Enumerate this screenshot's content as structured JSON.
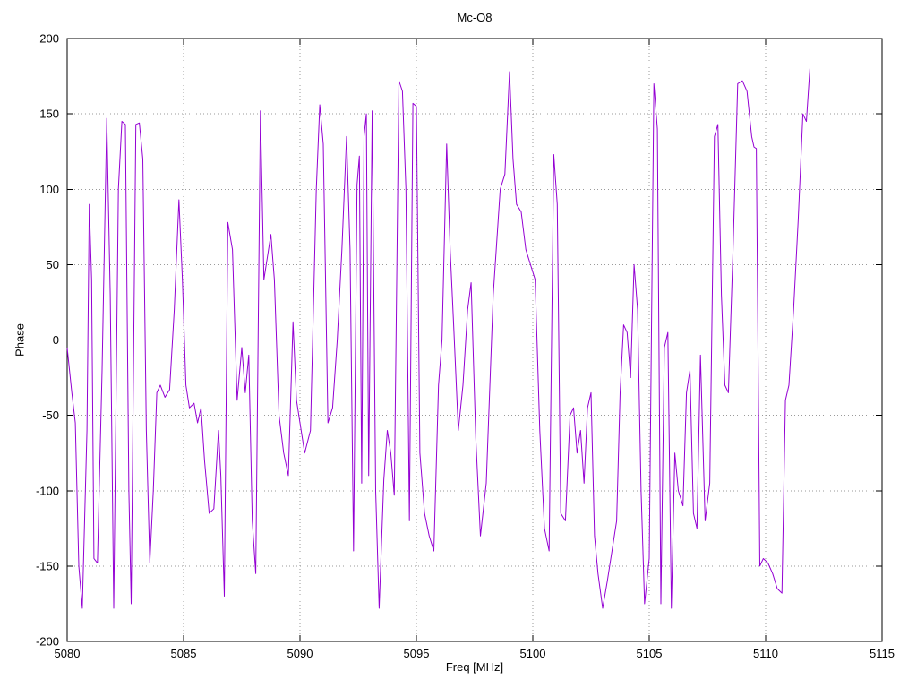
{
  "page": {
    "background": "#ffffff"
  },
  "chart_data": {
    "type": "line",
    "title": "Mc-O8",
    "xlabel": "Freq [MHz]",
    "ylabel": "Phase",
    "xlim": [
      5080,
      5115
    ],
    "ylim": [
      -200,
      200
    ],
    "x_ticks": [
      5080,
      5085,
      5090,
      5095,
      5100,
      5105,
      5110,
      5115
    ],
    "y_ticks": [
      -200,
      -150,
      -100,
      -50,
      0,
      50,
      100,
      150,
      200
    ],
    "grid": true,
    "grid_style": "dotted",
    "grid_color": "#9a9a9a",
    "border_color": "#000000",
    "line_color": "#9400d3",
    "legend": "none",
    "series": [
      {
        "name": "Mc-O8",
        "points": [
          [
            5080.0,
            -5
          ],
          [
            5080.2,
            -35
          ],
          [
            5080.35,
            -55
          ],
          [
            5080.5,
            -150
          ],
          [
            5080.65,
            -178
          ],
          [
            5080.85,
            -60
          ],
          [
            5080.95,
            90
          ],
          [
            5081.05,
            40
          ],
          [
            5081.15,
            -145
          ],
          [
            5081.3,
            -148
          ],
          [
            5081.5,
            -20
          ],
          [
            5081.7,
            147
          ],
          [
            5081.85,
            30
          ],
          [
            5082.0,
            -178
          ],
          [
            5082.2,
            100
          ],
          [
            5082.35,
            145
          ],
          [
            5082.5,
            143
          ],
          [
            5082.65,
            -100
          ],
          [
            5082.75,
            -175
          ],
          [
            5082.95,
            143
          ],
          [
            5083.1,
            144
          ],
          [
            5083.25,
            120
          ],
          [
            5083.4,
            -60
          ],
          [
            5083.55,
            -148
          ],
          [
            5083.7,
            -100
          ],
          [
            5083.85,
            -35
          ],
          [
            5084.0,
            -30
          ],
          [
            5084.2,
            -38
          ],
          [
            5084.4,
            -33
          ],
          [
            5084.6,
            20
          ],
          [
            5084.8,
            93
          ],
          [
            5084.95,
            40
          ],
          [
            5085.1,
            -30
          ],
          [
            5085.25,
            -45
          ],
          [
            5085.45,
            -42
          ],
          [
            5085.6,
            -55
          ],
          [
            5085.75,
            -45
          ],
          [
            5085.9,
            -80
          ],
          [
            5086.1,
            -115
          ],
          [
            5086.3,
            -112
          ],
          [
            5086.5,
            -60
          ],
          [
            5086.6,
            -90
          ],
          [
            5086.75,
            -170
          ],
          [
            5086.9,
            78
          ],
          [
            5087.1,
            60
          ],
          [
            5087.3,
            -40
          ],
          [
            5087.5,
            -5
          ],
          [
            5087.65,
            -35
          ],
          [
            5087.8,
            -10
          ],
          [
            5087.95,
            -120
          ],
          [
            5088.1,
            -155
          ],
          [
            5088.3,
            152
          ],
          [
            5088.45,
            40
          ],
          [
            5088.6,
            55
          ],
          [
            5088.75,
            70
          ],
          [
            5088.9,
            40
          ],
          [
            5089.1,
            -50
          ],
          [
            5089.3,
            -75
          ],
          [
            5089.5,
            -90
          ],
          [
            5089.7,
            12
          ],
          [
            5089.85,
            -40
          ],
          [
            5090.0,
            -55
          ],
          [
            5090.2,
            -75
          ],
          [
            5090.45,
            -60
          ],
          [
            5090.7,
            100
          ],
          [
            5090.85,
            156
          ],
          [
            5091.0,
            130
          ],
          [
            5091.2,
            -55
          ],
          [
            5091.4,
            -45
          ],
          [
            5091.6,
            0
          ],
          [
            5091.8,
            60
          ],
          [
            5092.0,
            135
          ],
          [
            5092.15,
            60
          ],
          [
            5092.3,
            -140
          ],
          [
            5092.45,
            103
          ],
          [
            5092.55,
            122
          ],
          [
            5092.65,
            -95
          ],
          [
            5092.75,
            135
          ],
          [
            5092.85,
            150
          ],
          [
            5092.95,
            -90
          ],
          [
            5093.1,
            152
          ],
          [
            5093.25,
            -100
          ],
          [
            5093.4,
            -178
          ],
          [
            5093.6,
            -93
          ],
          [
            5093.75,
            -60
          ],
          [
            5093.9,
            -75
          ],
          [
            5094.05,
            -103
          ],
          [
            5094.25,
            172
          ],
          [
            5094.4,
            165
          ],
          [
            5094.55,
            100
          ],
          [
            5094.7,
            -120
          ],
          [
            5094.85,
            157
          ],
          [
            5095.0,
            155
          ],
          [
            5095.15,
            -75
          ],
          [
            5095.35,
            -115
          ],
          [
            5095.55,
            -130
          ],
          [
            5095.75,
            -140
          ],
          [
            5095.95,
            -30
          ],
          [
            5096.1,
            0
          ],
          [
            5096.3,
            130
          ],
          [
            5096.45,
            60
          ],
          [
            5096.6,
            10
          ],
          [
            5096.8,
            -60
          ],
          [
            5097.0,
            -30
          ],
          [
            5097.2,
            20
          ],
          [
            5097.35,
            38
          ],
          [
            5097.55,
            -65
          ],
          [
            5097.75,
            -130
          ],
          [
            5098.0,
            -95
          ],
          [
            5098.3,
            30
          ],
          [
            5098.6,
            100
          ],
          [
            5098.8,
            110
          ],
          [
            5099.0,
            178
          ],
          [
            5099.15,
            120
          ],
          [
            5099.3,
            90
          ],
          [
            5099.5,
            85
          ],
          [
            5099.7,
            60
          ],
          [
            5099.9,
            50
          ],
          [
            5100.1,
            40
          ],
          [
            5100.3,
            -60
          ],
          [
            5100.5,
            -125
          ],
          [
            5100.7,
            -140
          ],
          [
            5100.9,
            123
          ],
          [
            5101.05,
            90
          ],
          [
            5101.2,
            -115
          ],
          [
            5101.4,
            -120
          ],
          [
            5101.6,
            -50
          ],
          [
            5101.75,
            -45
          ],
          [
            5101.9,
            -75
          ],
          [
            5102.05,
            -60
          ],
          [
            5102.2,
            -95
          ],
          [
            5102.35,
            -45
          ],
          [
            5102.5,
            -35
          ],
          [
            5102.65,
            -130
          ],
          [
            5102.8,
            -155
          ],
          [
            5103.0,
            -178
          ],
          [
            5103.2,
            -160
          ],
          [
            5103.4,
            -140
          ],
          [
            5103.6,
            -120
          ],
          [
            5103.75,
            -35
          ],
          [
            5103.9,
            10
          ],
          [
            5104.05,
            5
          ],
          [
            5104.2,
            -25
          ],
          [
            5104.35,
            50
          ],
          [
            5104.5,
            20
          ],
          [
            5104.65,
            -100
          ],
          [
            5104.8,
            -175
          ],
          [
            5105.0,
            -145
          ],
          [
            5105.2,
            170
          ],
          [
            5105.35,
            140
          ],
          [
            5105.5,
            -175
          ],
          [
            5105.65,
            -5
          ],
          [
            5105.8,
            5
          ],
          [
            5105.95,
            -178
          ],
          [
            5106.1,
            -75
          ],
          [
            5106.25,
            -100
          ],
          [
            5106.45,
            -110
          ],
          [
            5106.6,
            -35
          ],
          [
            5106.75,
            -20
          ],
          [
            5106.9,
            -115
          ],
          [
            5107.05,
            -125
          ],
          [
            5107.2,
            -10
          ],
          [
            5107.4,
            -120
          ],
          [
            5107.6,
            -95
          ],
          [
            5107.8,
            135
          ],
          [
            5107.95,
            143
          ],
          [
            5108.1,
            30
          ],
          [
            5108.25,
            -30
          ],
          [
            5108.4,
            -35
          ],
          [
            5108.6,
            60
          ],
          [
            5108.8,
            170
          ],
          [
            5109.0,
            172
          ],
          [
            5109.2,
            165
          ],
          [
            5109.4,
            135
          ],
          [
            5109.5,
            128
          ],
          [
            5109.6,
            127
          ],
          [
            5109.75,
            -150
          ],
          [
            5109.9,
            -145
          ],
          [
            5110.1,
            -148
          ],
          [
            5110.3,
            -155
          ],
          [
            5110.5,
            -165
          ],
          [
            5110.7,
            -168
          ],
          [
            5110.85,
            -40
          ],
          [
            5111.0,
            -30
          ],
          [
            5111.2,
            20
          ],
          [
            5111.4,
            80
          ],
          [
            5111.6,
            150
          ],
          [
            5111.75,
            145
          ],
          [
            5111.9,
            180
          ]
        ]
      }
    ]
  }
}
